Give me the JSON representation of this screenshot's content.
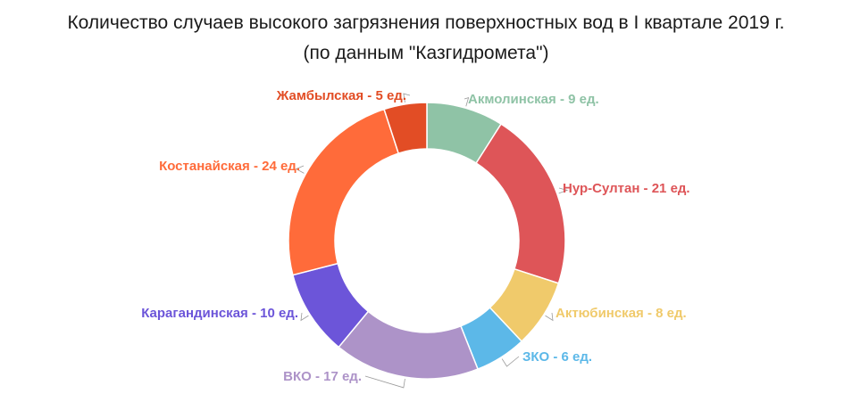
{
  "chart_data": {
    "type": "pie",
    "subtype": "donut",
    "title": "Количество случаев высокого загрязнения поверхностных вод в I квартале 2019 г.",
    "subtitle": "(по данным \"Казгидромета\")",
    "slices": [
      {
        "name": "Акмолинская",
        "value": 9,
        "label": "Акмолинская - 9 ед.",
        "color": "#8fc3a6"
      },
      {
        "name": "Нур-Султан",
        "value": 21,
        "label": "Нур-Султан - 21 ед.",
        "color": "#de5558"
      },
      {
        "name": "Актюбинская",
        "value": 8,
        "label": "Актюбинская - 8 ед.",
        "color": "#f0ca6b"
      },
      {
        "name": "ЗКО",
        "value": 6,
        "label": "ЗКО - 6 ед.",
        "color": "#5cb8e8"
      },
      {
        "name": "ВКО",
        "value": 17,
        "label": "ВКО - 17 ед.",
        "color": "#ad93c8"
      },
      {
        "name": "Карагандинская",
        "value": 10,
        "label": "Карагандинская - 10 ед.",
        "color": "#6c55d9"
      },
      {
        "name": "Костанайская",
        "value": 24,
        "label": "Костанайская - 24 ед.",
        "color": "#ff6b3a"
      },
      {
        "name": "Жамбылская",
        "value": 5,
        "label": "Жамбылская - 5 ед.",
        "color": "#e24d25"
      }
    ],
    "legend": "none",
    "grid": false
  }
}
